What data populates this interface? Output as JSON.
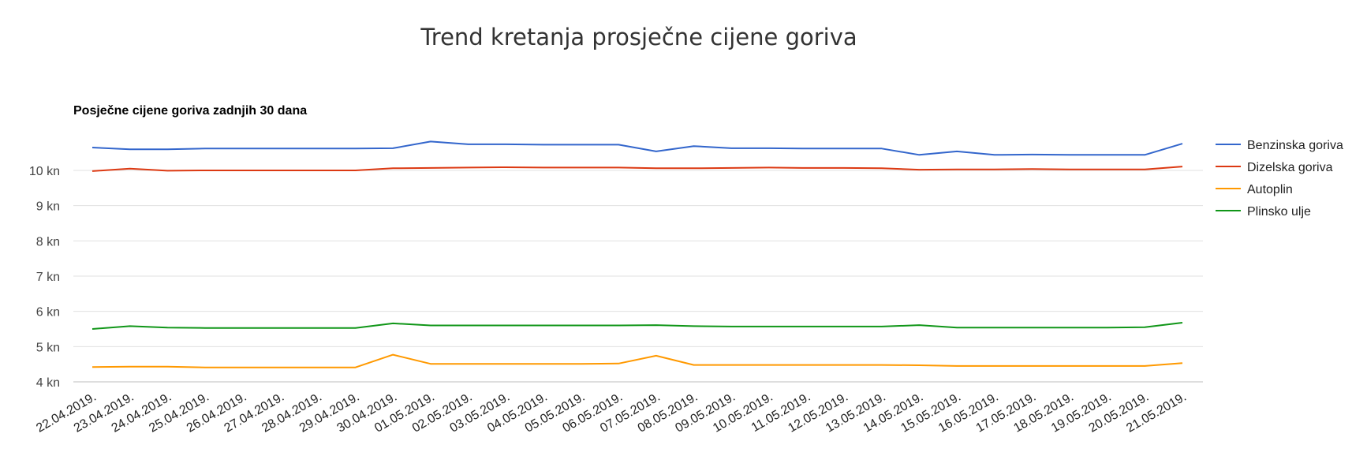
{
  "page": {
    "heading": "Trend kretanja prosječne cijene goriva"
  },
  "chart_data": {
    "type": "line",
    "title": "Posječne cijene goriva zadnjih 30 dana",
    "xlabel": "",
    "ylabel": "",
    "y_unit_suffix": " kn",
    "yticks": [
      4,
      5,
      6,
      7,
      8,
      9,
      10
    ],
    "ylim": [
      4,
      10.9
    ],
    "grid": true,
    "legend_position": "right",
    "x": [
      "22.04.2019.",
      "23.04.2019.",
      "24.04.2019.",
      "25.04.2019.",
      "26.04.2019.",
      "27.04.2019.",
      "28.04.2019.",
      "29.04.2019.",
      "30.04.2019.",
      "01.05.2019.",
      "02.05.2019.",
      "03.05.2019.",
      "04.05.2019.",
      "05.05.2019.",
      "06.05.2019.",
      "07.05.2019.",
      "08.05.2019.",
      "09.05.2019.",
      "10.05.2019.",
      "11.05.2019.",
      "12.05.2019.",
      "13.05.2019.",
      "14.05.2019.",
      "15.05.2019.",
      "16.05.2019.",
      "17.05.2019.",
      "18.05.2019.",
      "19.05.2019.",
      "20.05.2019.",
      "21.05.2019."
    ],
    "series": [
      {
        "name": "Benzinska goriva",
        "color": "#3366cc",
        "values": [
          10.65,
          10.6,
          10.6,
          10.62,
          10.62,
          10.62,
          10.62,
          10.62,
          10.63,
          10.82,
          10.74,
          10.74,
          10.73,
          10.73,
          10.73,
          10.54,
          10.69,
          10.63,
          10.63,
          10.62,
          10.62,
          10.62,
          10.44,
          10.54,
          10.44,
          10.45,
          10.44,
          10.44,
          10.44,
          10.76
        ]
      },
      {
        "name": "Dizelska goriva",
        "color": "#dc3912",
        "values": [
          9.98,
          10.05,
          9.99,
          10.0,
          10.0,
          10.0,
          10.0,
          10.0,
          10.06,
          10.07,
          10.08,
          10.09,
          10.08,
          10.08,
          10.08,
          10.06,
          10.06,
          10.07,
          10.08,
          10.07,
          10.07,
          10.06,
          10.02,
          10.03,
          10.03,
          10.04,
          10.03,
          10.03,
          10.03,
          10.11
        ]
      },
      {
        "name": "Autoplin",
        "color": "#ff9900",
        "values": [
          4.42,
          4.43,
          4.43,
          4.41,
          4.41,
          4.41,
          4.41,
          4.41,
          4.77,
          4.51,
          4.51,
          4.51,
          4.51,
          4.51,
          4.52,
          4.74,
          4.48,
          4.48,
          4.48,
          4.48,
          4.48,
          4.48,
          4.47,
          4.45,
          4.45,
          4.45,
          4.45,
          4.45,
          4.45,
          4.53
        ]
      },
      {
        "name": "Plinsko ulje",
        "color": "#109618",
        "values": [
          5.5,
          5.58,
          5.54,
          5.53,
          5.53,
          5.53,
          5.53,
          5.53,
          5.66,
          5.6,
          5.6,
          5.6,
          5.6,
          5.6,
          5.6,
          5.61,
          5.58,
          5.57,
          5.57,
          5.57,
          5.57,
          5.57,
          5.61,
          5.54,
          5.54,
          5.54,
          5.54,
          5.54,
          5.55,
          5.68
        ]
      }
    ]
  }
}
